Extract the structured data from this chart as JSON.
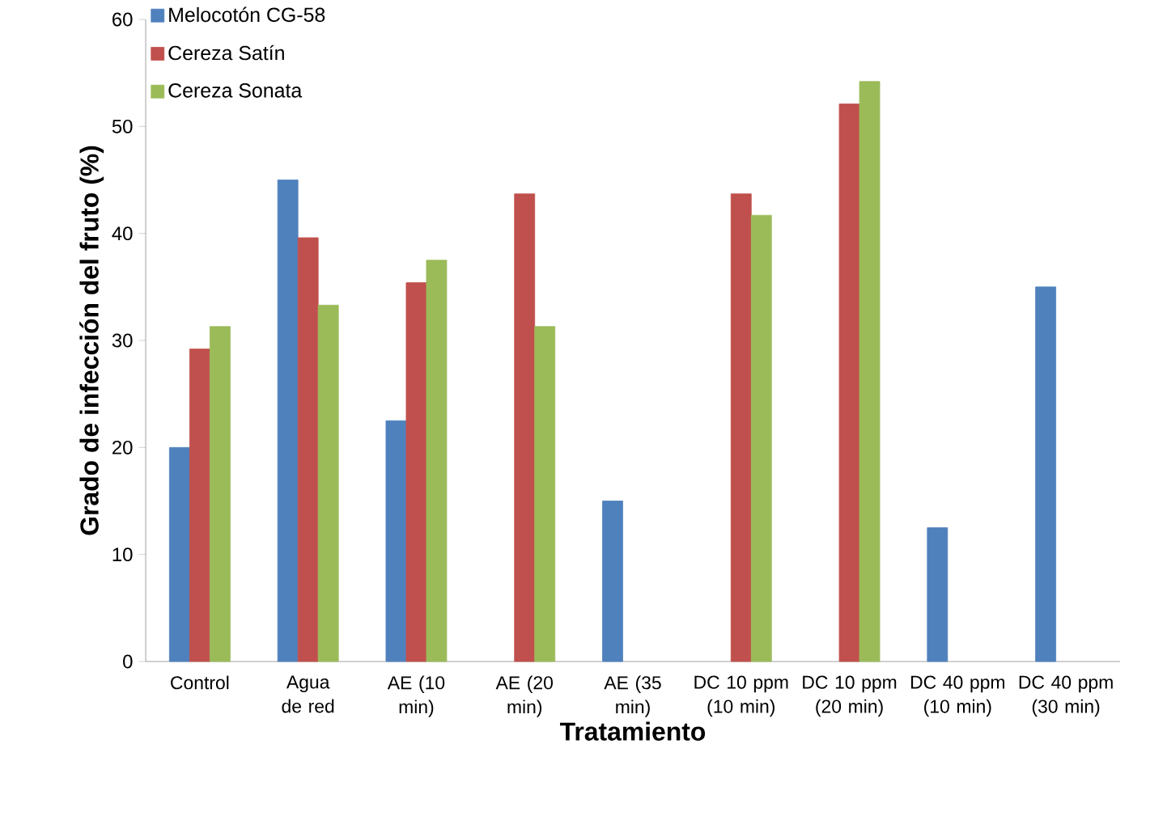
{
  "chart_data": {
    "type": "bar",
    "xlabel": "Tratamiento",
    "ylabel": "Grado de infección del fruto (%)",
    "categories": [
      "Control",
      "Agua de red",
      "AE (10 min)",
      "AE (20 min)",
      "AE (35 min)",
      "DC 10 ppm (10 min)",
      "DC 10 ppm (20 min)",
      "DC 40 ppm (10 min)",
      "DC 40 ppm (30 min)"
    ],
    "series": [
      {
        "name": "Melocotón CG-58",
        "color": "#4f81bd",
        "values": [
          20,
          45,
          22.5,
          null,
          15,
          null,
          null,
          12.5,
          35
        ]
      },
      {
        "name": "Cereza Satín",
        "color": "#c0504d",
        "values": [
          29.2,
          39.6,
          35.4,
          43.7,
          null,
          43.7,
          52.1,
          null,
          null
        ]
      },
      {
        "name": "Cereza Sonata",
        "color": "#9bbb59",
        "values": [
          31.3,
          33.3,
          37.5,
          31.3,
          null,
          41.7,
          54.2,
          null,
          null
        ]
      }
    ],
    "ylim": [
      0,
      60
    ],
    "yticks": [
      0,
      10,
      20,
      30,
      40,
      50,
      60
    ],
    "grid": false,
    "legend": "top left"
  }
}
